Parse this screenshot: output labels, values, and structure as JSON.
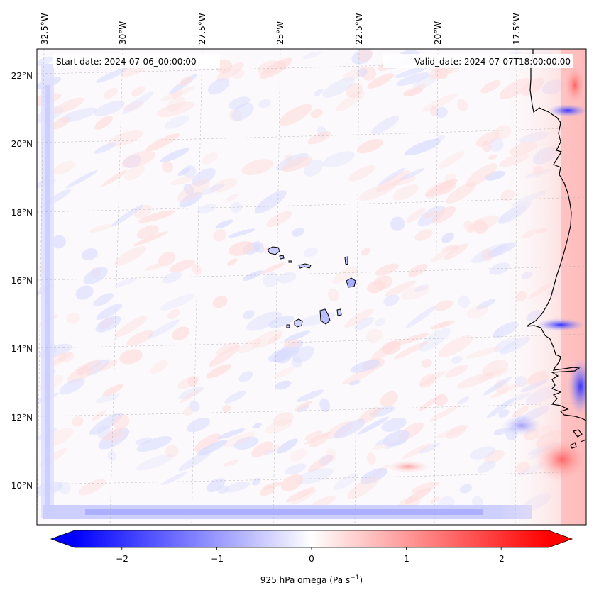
{
  "map": {
    "start_date_label": "Start date: 2024-07-06_00:00:00",
    "valid_date_label": "Valid_date: 2024-07-07T18:00:00.00",
    "lon_labels": [
      "32.5°W",
      "30°W",
      "27.5°W",
      "25°W",
      "22.5°W",
      "20°W",
      "17.5°W"
    ],
    "lat_labels": [
      "22°N",
      "20°N",
      "18°N",
      "16°N",
      "14°N",
      "12°N",
      "10°N"
    ],
    "colorbar": {
      "label": "925 hPa omega (Pa s",
      "label_exponent": "−1",
      "label_close": ")",
      "tick_labels": [
        "−2",
        "−1",
        "0",
        "1",
        "2"
      ],
      "range": [
        -2.75,
        2.75
      ],
      "ticks": [
        -2,
        -1,
        0,
        1,
        2
      ]
    },
    "colors": {
      "negative": "#0000ff",
      "neutral": "#ffffff",
      "positive": "#ff0000",
      "coastline": "#000000",
      "gridline": "#b0b0b0"
    },
    "islands": [
      "Santo Antão",
      "São Vicente",
      "Santa Luzia",
      "São Nicolau",
      "Sal",
      "Boa Vista",
      "Maio",
      "Santiago",
      "Fogo",
      "Brava"
    ]
  }
}
